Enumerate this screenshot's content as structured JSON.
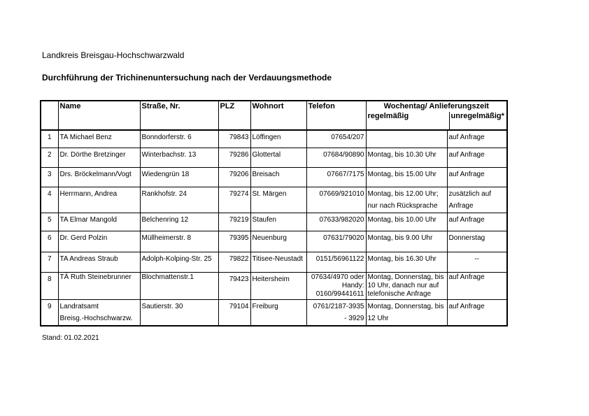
{
  "header": {
    "district": "Landkreis Breisgau-Hochschwarzwald",
    "title": "Durchführung der Trichinenuntersuchung nach der Verdauungsmethode"
  },
  "table": {
    "columns": {
      "name": "Name",
      "street": "Straße, Nr.",
      "plz": "PLZ",
      "city": "Wohnort",
      "phone": "Telefon",
      "delivery": "Wochentag/ Anlieferungszeit",
      "regular": "regelmäßig",
      "irregular": "unregelmäßig*"
    },
    "rows": [
      {
        "no": "1",
        "name": [
          "TA Michael Benz"
        ],
        "street": [
          "Bonndorferstr. 6"
        ],
        "plz": "79843",
        "city": "Löffingen",
        "phone": [
          "07654/207"
        ],
        "regular": [
          ""
        ],
        "irregular": [
          "auf Anfrage"
        ]
      },
      {
        "no": "2",
        "name": [
          "Dr. Dörthe Bretzinger"
        ],
        "street": [
          "Winterbachstr. 13"
        ],
        "plz": "79286",
        "city": "Glottertal",
        "phone": [
          "07684/90890"
        ],
        "regular": [
          "Montag, bis 10.30 Uhr"
        ],
        "irregular": [
          "auf Anfrage"
        ]
      },
      {
        "no": "3",
        "name": [
          "Drs. Bröckelmann/Vogt"
        ],
        "street": [
          "Wiedengrün 18"
        ],
        "plz": "79206",
        "city": "Breisach",
        "phone": [
          "07667/7175"
        ],
        "regular": [
          "Montag, bis 15.00 Uhr"
        ],
        "irregular": [
          "auf Anfrage"
        ]
      },
      {
        "no": "4",
        "name": [
          "Herrmann, Andrea"
        ],
        "street": [
          "Rankhofstr. 24"
        ],
        "plz": "79274",
        "city": "St. Märgen",
        "phone": [
          "07669/921010"
        ],
        "regular": [
          "Montag, bis 12.00 Uhr;",
          "nur nach Rücksprache"
        ],
        "irregular": [
          "zusätzlich auf",
          "Anfrage"
        ]
      },
      {
        "no": "5",
        "name": [
          "TA Elmar Mangold"
        ],
        "street": [
          "Belchenring 12"
        ],
        "plz": "79219",
        "city": "Staufen",
        "phone": [
          "07633/982020"
        ],
        "regular": [
          "Montag, bis 10.00 Uhr"
        ],
        "irregular": [
          "auf Anfrage"
        ]
      },
      {
        "no": "6",
        "name": [
          "Dr. Gerd Polzin"
        ],
        "street": [
          "Müllheimerstr. 8"
        ],
        "plz": "79395",
        "city": "Neuenburg",
        "phone": [
          "07631/79020"
        ],
        "regular": [
          "Montag, bis 9.00 Uhr"
        ],
        "irregular": [
          "Donnerstag"
        ]
      },
      {
        "no": "7",
        "name": [
          "TA Andreas Straub"
        ],
        "street": [
          "Adolph-Kolping-Str. 25"
        ],
        "plz": "79822",
        "city": "Titisee-Neustadt",
        "phone": [
          "0151/56961122"
        ],
        "regular": [
          "Montag, bis 16.30 Uhr"
        ],
        "irregular": [
          "--"
        ]
      },
      {
        "no": "8",
        "name": [
          "TÄ Ruth Steinebrunner"
        ],
        "street": [
          "Blochmattenstr.1"
        ],
        "plz": "79423",
        "city": "Heitersheim",
        "phone": [
          "07634/4970 oder",
          "Handy:",
          "0160/99441611"
        ],
        "regular": [
          "Montag, Donnerstag, bis",
          "10 Uhr, danach nur auf",
          "telefonische Anfrage"
        ],
        "irregular": [
          "auf Anfrage"
        ]
      },
      {
        "no": "9",
        "name": [
          "Landratsamt",
          "Breisg.-Hochschwarzw."
        ],
        "street": [
          "Sautierstr. 30"
        ],
        "plz": "79104",
        "city": "Freiburg",
        "phone": [
          "0761/2187-3935",
          "- 3929"
        ],
        "regular": [
          "Montag, Donnerstag, bis",
          "12 Uhr"
        ],
        "irregular": [
          "auf Anfrage"
        ]
      }
    ]
  },
  "footer": {
    "stand": "Stand: 01.02.2021"
  }
}
